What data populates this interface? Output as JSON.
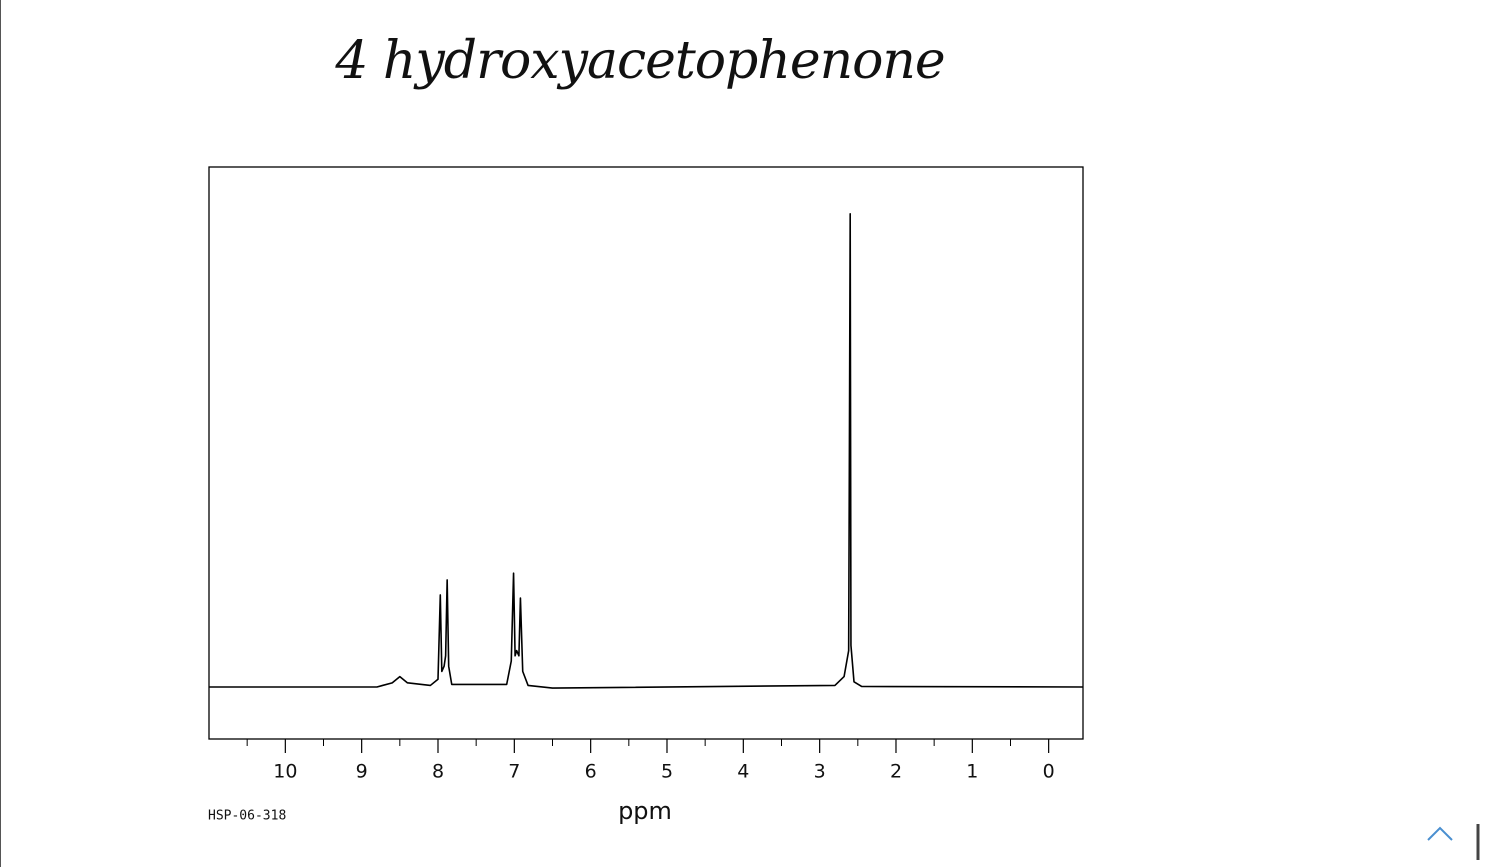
{
  "chart_data": {
    "type": "line",
    "title": "4 hydroxyacetophenone",
    "x_label": "ppm",
    "code": "HSP-06-318",
    "xlim": [
      11,
      -0.45
    ],
    "ylim": [
      -10,
      100
    ],
    "xticks": [
      10,
      9,
      8,
      7,
      6,
      5,
      4,
      3,
      2,
      1,
      0
    ],
    "xminorticks": [
      10.5,
      9.5,
      8.5,
      7.5,
      6.5,
      5.5,
      4.5,
      3.5,
      2.5,
      1.5,
      0.5
    ],
    "series": [
      {
        "color": "#000000",
        "x": [
          11,
          8.8,
          8.6,
          8.5,
          8.4,
          8.1,
          8.0,
          7.97,
          7.95,
          7.92,
          7.9,
          7.88,
          7.86,
          7.82,
          7.1,
          7.04,
          7.01,
          6.99,
          6.97,
          6.94,
          6.92,
          6.89,
          6.82,
          6.5,
          2.8,
          2.68,
          2.62,
          2.61,
          2.6,
          2.59,
          2.55,
          2.45,
          -0.45
        ],
        "values": [
          0,
          0,
          0.8,
          2,
          0.8,
          0.3,
          1.5,
          17.7,
          3,
          4,
          6,
          20.6,
          4,
          0.5,
          0.5,
          5,
          21.9,
          6,
          7,
          6,
          17.1,
          3,
          0.3,
          -0.2,
          0.3,
          2,
          7,
          47,
          91,
          8,
          1,
          0.1,
          0
        ]
      }
    ]
  }
}
